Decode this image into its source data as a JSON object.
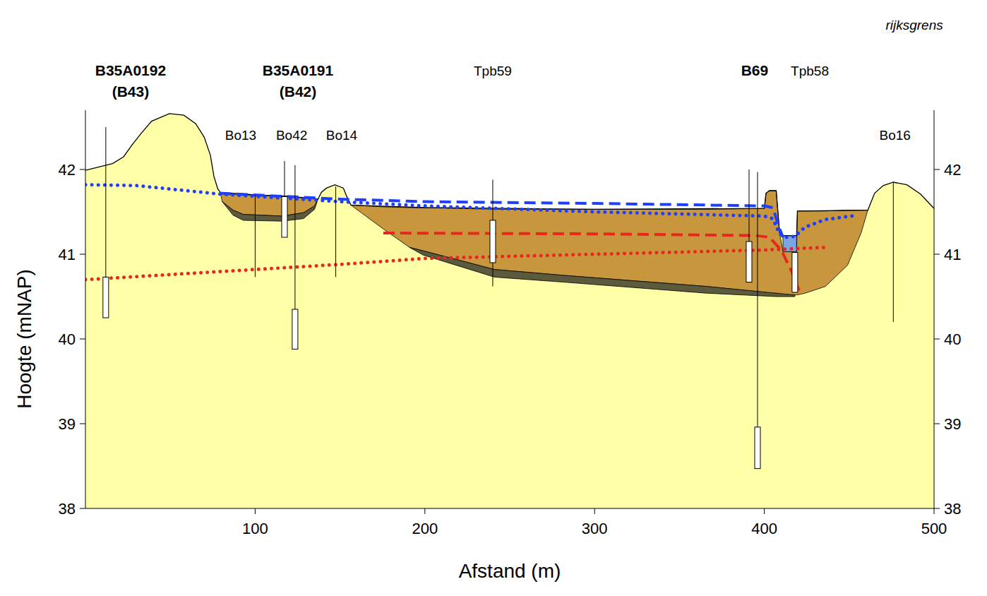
{
  "chart_data": {
    "type": "cross_section",
    "x_label": "Afstand (m)",
    "y_label": "Hoogte (mNAP)",
    "xlim": [
      0,
      500
    ],
    "xticks": [
      100,
      200,
      300,
      400,
      500
    ],
    "ylim": [
      38,
      42.7
    ],
    "yticks": [
      38,
      39,
      40,
      41,
      42
    ],
    "y2lim": [
      38,
      42.7
    ],
    "y2ticks": [
      38,
      39,
      40,
      41,
      42
    ],
    "grid": false,
    "series": [
      {
        "type": "area",
        "color": "#ffffa8",
        "line_style": "solid",
        "x": [
          0,
          16,
          22.5,
          27.5,
          33,
          39,
          49.5,
          58,
          65,
          70,
          73.6,
          75.7,
          78,
          79.5,
          100,
          120,
          137,
          139,
          142,
          147,
          152,
          154,
          156.4,
          200,
          300,
          400,
          401,
          403,
          407,
          409,
          411,
          419,
          419.5,
          461,
          465,
          470,
          476,
          484,
          492,
          500
        ],
        "values": [
          41.99,
          42.07,
          42.15,
          42.29,
          42.43,
          42.57,
          42.66,
          42.64,
          42.54,
          42.38,
          42.17,
          41.92,
          41.77,
          41.73,
          41.7,
          41.68,
          41.65,
          41.73,
          41.78,
          41.82,
          41.78,
          41.68,
          41.58,
          41.55,
          41.53,
          41.54,
          41.72,
          41.75,
          41.75,
          41.25,
          41.22,
          41.22,
          41.51,
          41.52,
          41.72,
          41.81,
          41.85,
          41.82,
          41.71,
          41.54
        ]
      },
      {
        "type": "band",
        "color": "#c8963c",
        "x": [
          79.5,
          80.6,
          87,
          93,
          116,
          128.5,
          135,
          137
        ],
        "values": [
          41.73,
          41.72,
          41.71,
          41.7,
          41.69,
          41.67,
          41.66,
          41.65
        ],
        "lower": [
          41.73,
          41.62,
          41.52,
          41.47,
          41.45,
          41.49,
          41.57,
          41.65
        ]
      },
      {
        "type": "band",
        "color": "#5c5a3c",
        "x": [
          80.6,
          87,
          93,
          116,
          128.5,
          135,
          137
        ],
        "values": [
          41.62,
          41.52,
          41.47,
          41.45,
          41.49,
          41.57,
          41.65
        ],
        "lower": [
          41.62,
          41.46,
          41.4,
          41.39,
          41.42,
          41.53,
          41.65
        ]
      },
      {
        "type": "band",
        "color": "#c8963c",
        "x": [
          156.4,
          174,
          191,
          199,
          241,
          282,
          366,
          400,
          401,
          403,
          407,
          409,
          411,
          419,
          419.5,
          424,
          436,
          449,
          457,
          461
        ],
        "values": [
          41.58,
          41.56,
          41.55,
          41.55,
          41.53,
          41.53,
          41.53,
          41.54,
          41.72,
          41.75,
          41.75,
          41.25,
          41.03,
          41.03,
          41.51,
          41.51,
          41.51,
          41.52,
          41.52,
          41.52
        ],
        "lower": [
          41.58,
          41.32,
          41.08,
          41.04,
          40.82,
          40.75,
          40.62,
          40.55,
          40.55,
          40.54,
          40.54,
          40.53,
          40.52,
          40.52,
          40.52,
          40.54,
          40.62,
          40.87,
          41.25,
          41.52
        ]
      },
      {
        "type": "band",
        "color": "#5c5a3c",
        "x": [
          191,
          199,
          241,
          282,
          366,
          407,
          418
        ],
        "values": [
          41.08,
          41.04,
          40.82,
          40.75,
          40.62,
          40.54,
          40.52
        ],
        "lower": [
          41.08,
          40.99,
          40.73,
          40.67,
          40.54,
          40.5,
          40.5
        ]
      },
      {
        "type": "band",
        "color": "#7aa6e6",
        "x": [
          411,
          419
        ],
        "values": [
          41.22,
          41.22
        ],
        "lower": [
          41.03,
          41.03
        ]
      },
      {
        "type": "line",
        "color": "#1f3fff",
        "line_style": "dotted",
        "x": [
          0,
          30,
          79,
          150,
          200,
          300,
          400,
          405,
          409,
          413,
          418,
          424,
          436,
          455
        ],
        "values": [
          41.82,
          41.81,
          41.71,
          41.62,
          41.57,
          41.5,
          41.45,
          41.42,
          41.24,
          41.2,
          41.21,
          41.32,
          41.41,
          41.46
        ]
      },
      {
        "type": "line",
        "color": "#1f3fff",
        "line_style": "dashed",
        "x": [
          79,
          150,
          200,
          300,
          400,
          405,
          409,
          411
        ],
        "values": [
          41.72,
          41.65,
          41.62,
          41.6,
          41.57,
          41.55,
          41.3,
          41.2
        ]
      },
      {
        "type": "line",
        "color": "#e8281e",
        "line_style": "dashed",
        "x": [
          175.5,
          300,
          395,
          403,
          410,
          416,
          420.5
        ],
        "values": [
          41.25,
          41.24,
          41.22,
          41.2,
          41.05,
          40.8,
          40.57
        ]
      },
      {
        "type": "line",
        "color": "#e8281e",
        "line_style": "dotted",
        "x": [
          0,
          100,
          150,
          200,
          300,
          400,
          435
        ],
        "values": [
          40.7,
          40.82,
          40.88,
          40.95,
          41.0,
          41.05,
          41.08
        ]
      }
    ],
    "boreholes": [
      {
        "x": 12,
        "top": 42.5,
        "bottom": 40.25,
        "screens": [
          [
            40.73,
            40.25
          ]
        ]
      },
      {
        "x": 100,
        "top": 41.7,
        "bottom": 40.73,
        "screens": []
      },
      {
        "x": 117.3,
        "top": 42.1,
        "bottom": 41.2,
        "screens": [
          [
            41.68,
            41.2
          ]
        ]
      },
      {
        "x": 123.5,
        "top": 42.05,
        "bottom": 39.88,
        "screens": [
          [
            40.35,
            39.88
          ]
        ]
      },
      {
        "x": 147.5,
        "top": 41.8,
        "bottom": 40.73,
        "screens": []
      },
      {
        "x": 240,
        "top": 41.88,
        "bottom": 40.62,
        "screens": [
          [
            41.4,
            40.9
          ]
        ]
      },
      {
        "x": 391,
        "top": 42.0,
        "bottom": 40.67,
        "screens": [
          [
            41.15,
            40.67
          ]
        ]
      },
      {
        "x": 396,
        "top": 41.97,
        "bottom": 38.47,
        "screens": [
          [
            38.96,
            38.47
          ]
        ]
      },
      {
        "x": 418,
        "top": 41.02,
        "bottom": 40.55,
        "screens": [
          [
            41.02,
            40.55
          ]
        ]
      },
      {
        "x": 476,
        "top": 41.85,
        "bottom": 40.2,
        "screens": []
      }
    ],
    "well_labels": [
      {
        "lines": [
          "B35A0192",
          "(B43)"
        ],
        "x": 26.6,
        "y": 43.17
      },
      {
        "lines": [
          "B35A0191",
          "(B42)"
        ],
        "x": 125.2,
        "y": 43.17
      },
      {
        "lines": [
          "B69"
        ],
        "x": 394.3,
        "y": 43.17
      }
    ],
    "annotations": [
      {
        "text": "Tpb59",
        "x": 240,
        "y": 43.17
      },
      {
        "text": "Tpb58",
        "x": 426.8,
        "y": 43.17
      },
      {
        "text": "Bo13",
        "x": 91.5,
        "y": 42.41
      },
      {
        "text": "Bo42",
        "x": 121.5,
        "y": 42.41
      },
      {
        "text": "Bo14",
        "x": 151,
        "y": 42.41
      },
      {
        "text": "Bo16",
        "x": 477,
        "y": 42.41
      }
    ],
    "border_label": {
      "text": "rijksgrens",
      "x": 488.4,
      "y": 43.71
    }
  }
}
